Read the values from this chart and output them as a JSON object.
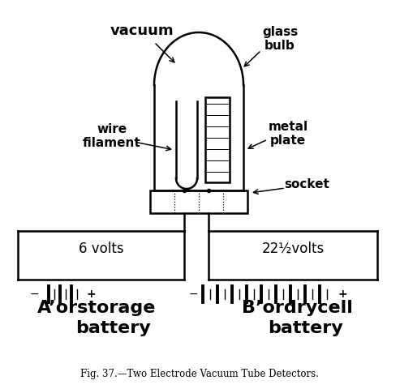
{
  "title": "Fig. 37.—Two Electrode Vacuum Tube Detectors.",
  "bg_color": "#ffffff",
  "line_color": "#000000",
  "fig_width": 4.93,
  "fig_height": 4.8,
  "dpi": 100,
  "labels": {
    "vacuum": "vacuum",
    "glass_bulb": "glass\nbulb",
    "wire_filament": "wire\nfilament",
    "metal_plate": "metal\nplate",
    "socket": "socket",
    "six_volts": "6 volts",
    "twentytwo_volts": "22½volts",
    "battery_A_line1": "A’orstorage",
    "battery_A_line2": "battery",
    "battery_B_line1": "B’ordrycell",
    "battery_B_line2": "battery"
  }
}
